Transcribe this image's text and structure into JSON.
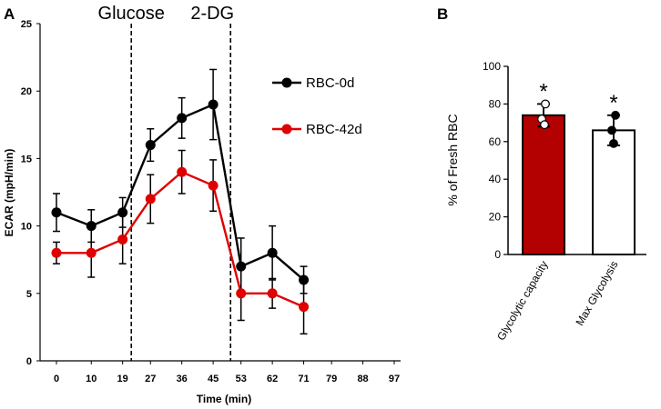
{
  "panels": {
    "a": "A",
    "b": "B"
  },
  "chart_data": [
    {
      "type": "line",
      "panel": "A",
      "xlabel": "Time (min)",
      "ylabel": "ECAR (mpH/min)",
      "xlim": [
        0,
        97
      ],
      "ylim": [
        0,
        25
      ],
      "xticks": [
        0,
        10,
        19,
        27,
        36,
        45,
        53,
        62,
        71,
        79,
        88,
        97
      ],
      "yticks": [
        0,
        5,
        10,
        15,
        20,
        25
      ],
      "events": [
        {
          "label": "Glucose",
          "x": 21.5
        },
        {
          "label": "2-DG",
          "x": 50
        }
      ],
      "series": [
        {
          "name": "RBC-0d",
          "color": "#000000",
          "x": [
            0,
            10,
            19,
            27,
            36,
            45,
            53,
            62,
            71
          ],
          "y": [
            11,
            10,
            11,
            16,
            18,
            19,
            7,
            8,
            6
          ],
          "err": [
            1.4,
            1.2,
            1.1,
            1.2,
            1.5,
            2.6,
            2.1,
            2.0,
            1.0
          ]
        },
        {
          "name": "RBC-42d",
          "color": "#e00000",
          "x": [
            0,
            10,
            19,
            27,
            36,
            45,
            53,
            62,
            71
          ],
          "y": [
            8,
            8,
            9,
            12,
            14,
            13,
            5,
            5,
            4
          ],
          "err": [
            0.8,
            1.8,
            1.8,
            1.8,
            1.6,
            1.9,
            2.0,
            1.1,
            2.0
          ]
        }
      ]
    },
    {
      "type": "bar",
      "panel": "B",
      "ylabel": "% of Fresh RBC",
      "ylim": [
        0,
        100
      ],
      "yticks": [
        0,
        20,
        40,
        60,
        80,
        100
      ],
      "categories": [
        "Glycolytic capacity",
        "Max Glycolysis"
      ],
      "values": [
        74,
        66
      ],
      "errors": [
        6,
        8
      ],
      "bar_colors": [
        "#b30000",
        "#ffffff"
      ],
      "points": [
        [
          80,
          72,
          69
        ],
        [
          74,
          66,
          59
        ]
      ],
      "point_fills": [
        [
          "#ffffff",
          "#ffffff",
          "#ffffff"
        ],
        [
          "#000000",
          "#000000",
          "#000000"
        ]
      ],
      "significance": [
        "*",
        "*"
      ]
    }
  ]
}
